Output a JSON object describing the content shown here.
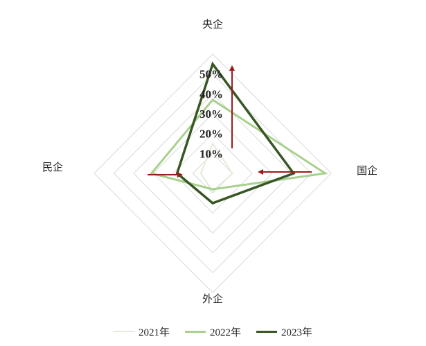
{
  "chart_data": {
    "type": "radar",
    "axes": [
      "央企",
      "国企",
      "外企",
      "民企"
    ],
    "tick_labels": [
      "10%",
      "20%",
      "30%",
      "40%",
      "50%"
    ],
    "rmax": 0.6,
    "series": [
      {
        "name": "2021年",
        "values": [
          0.15,
          0.1,
          0.09,
          0.06
        ],
        "color": "#e3ecd9",
        "width": 2
      },
      {
        "name": "2022年",
        "values": [
          0.37,
          0.57,
          0.08,
          0.31
        ],
        "color": "#a9d08e",
        "width": 3
      },
      {
        "name": "2023年",
        "values": [
          0.55,
          0.41,
          0.15,
          0.18
        ],
        "color": "#375623",
        "width": 3.5
      }
    ],
    "arrow_color": "#9b1b1b"
  }
}
